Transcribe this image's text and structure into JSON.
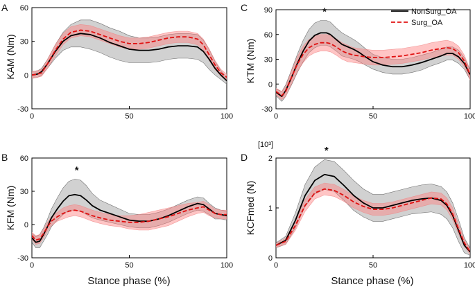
{
  "figure": {
    "legend": {
      "nonsurg": "NonSurg_OA",
      "surg": "Surg_OA"
    },
    "colors": {
      "nonsurg_line": "#000000",
      "nonsurg_band": "#9a9a9a",
      "surg_line": "#e01010",
      "surg_band": "#ff7f7f"
    }
  },
  "chart_data": [
    {
      "type": "line",
      "panel_label": "A",
      "ylabel": "KAM (Nm)",
      "xlabel": "",
      "xlim": [
        0,
        100
      ],
      "ylim": [
        -30,
        60
      ],
      "yticks": [
        "-30",
        "0",
        "30",
        "60"
      ],
      "xticks": [
        "0",
        "50",
        "100"
      ],
      "significance": "",
      "star_x": null,
      "x": [
        0,
        3,
        5,
        8,
        12,
        16,
        20,
        25,
        30,
        35,
        40,
        45,
        50,
        55,
        60,
        65,
        70,
        75,
        80,
        85,
        88,
        91,
        94,
        97,
        100
      ],
      "series": [
        {
          "name": "NonSurg_OA",
          "mean": [
            0,
            1,
            3,
            10,
            21,
            30,
            35,
            37,
            36,
            33,
            29,
            26,
            23,
            22,
            22,
            23,
            25,
            26,
            26,
            25,
            21,
            14,
            6,
            0,
            -5
          ],
          "sd": [
            3,
            3,
            3,
            4,
            6,
            8,
            10,
            12,
            13,
            13,
            13,
            13,
            12,
            11,
            11,
            11,
            11,
            11,
            11,
            11,
            10,
            9,
            6,
            4,
            3
          ]
        },
        {
          "name": "Surg_OA",
          "mean": [
            0,
            1,
            2,
            10,
            22,
            32,
            38,
            40,
            39,
            36,
            33,
            30,
            28,
            28,
            29,
            31,
            33,
            34,
            34,
            32,
            27,
            18,
            9,
            2,
            -2
          ],
          "sd": [
            3,
            3,
            3,
            4,
            5,
            5,
            5,
            5,
            5,
            5,
            5,
            5,
            5,
            5,
            5,
            5,
            5,
            5,
            5,
            5,
            5,
            5,
            4,
            3,
            3
          ]
        }
      ]
    },
    {
      "type": "line",
      "panel_label": "B",
      "ylabel": "KFM (Nm)",
      "xlabel": "Stance phase (%)",
      "xlim": [
        0,
        100
      ],
      "ylim": [
        -30,
        60
      ],
      "yticks": [
        "-30",
        "0",
        "30",
        "60"
      ],
      "xticks": [
        "0",
        "50",
        "100"
      ],
      "significance": "*",
      "star_x": 23,
      "x": [
        0,
        2,
        4,
        6,
        8,
        10,
        13,
        16,
        19,
        22,
        25,
        28,
        31,
        35,
        40,
        45,
        50,
        55,
        60,
        65,
        70,
        75,
        80,
        85,
        88,
        91,
        94,
        97,
        100
      ],
      "series": [
        {
          "name": "NonSurg_OA",
          "mean": [
            -12,
            -16,
            -15,
            -9,
            -2,
            6,
            14,
            21,
            26,
            27,
            26,
            22,
            17,
            13,
            10,
            7,
            4,
            3,
            3,
            5,
            8,
            12,
            16,
            19,
            18,
            14,
            10,
            9,
            8
          ],
          "sd": [
            4,
            5,
            6,
            6,
            7,
            8,
            10,
            12,
            13,
            14,
            14,
            13,
            11,
            9,
            8,
            7,
            6,
            6,
            6,
            6,
            6,
            6,
            6,
            6,
            6,
            5,
            5,
            4,
            4
          ]
        },
        {
          "name": "Surg_OA",
          "mean": [
            -10,
            -14,
            -13,
            -8,
            -2,
            3,
            7,
            10,
            12,
            13,
            12,
            10,
            8,
            6,
            4,
            3,
            2,
            2,
            3,
            5,
            7,
            10,
            13,
            15,
            16,
            13,
            10,
            9,
            9
          ],
          "sd": [
            3,
            4,
            4,
            4,
            4,
            4,
            4,
            5,
            5,
            5,
            5,
            5,
            5,
            5,
            5,
            5,
            6,
            7,
            8,
            8,
            8,
            7,
            6,
            5,
            5,
            5,
            4,
            4,
            4
          ]
        }
      ]
    },
    {
      "type": "line",
      "panel_label": "C",
      "ylabel": "KTM (Nm)",
      "xlabel": "",
      "xlim": [
        0,
        100
      ],
      "ylim": [
        -30,
        90
      ],
      "yticks": [
        "-30",
        "0",
        "30",
        "60",
        "90"
      ],
      "xticks": [
        "0",
        "50",
        "100"
      ],
      "significance": "*",
      "star_x": 25,
      "x": [
        0,
        3,
        5,
        8,
        11,
        14,
        17,
        20,
        23,
        26,
        28,
        31,
        34,
        37,
        40,
        43,
        46,
        50,
        55,
        60,
        65,
        70,
        75,
        80,
        85,
        88,
        91,
        94,
        97,
        100
      ],
      "series": [
        {
          "name": "NonSurg_OA",
          "mean": [
            -10,
            -15,
            -8,
            8,
            25,
            40,
            52,
            59,
            62,
            62,
            60,
            54,
            48,
            45,
            42,
            38,
            33,
            27,
            23,
            21,
            21,
            23,
            26,
            30,
            34,
            37,
            37,
            33,
            25,
            11
          ],
          "sd": [
            4,
            6,
            7,
            9,
            11,
            13,
            14,
            15,
            15,
            15,
            15,
            14,
            14,
            13,
            12,
            11,
            10,
            9,
            9,
            9,
            9,
            9,
            9,
            8,
            8,
            8,
            8,
            8,
            7,
            6
          ]
        },
        {
          "name": "Surg_OA",
          "mean": [
            -9,
            -14,
            -9,
            8,
            24,
            36,
            44,
            48,
            50,
            50,
            49,
            45,
            40,
            37,
            35,
            34,
            33,
            32,
            32,
            33,
            34,
            36,
            38,
            41,
            43,
            44,
            43,
            38,
            28,
            11
          ],
          "sd": [
            4,
            5,
            6,
            8,
            9,
            10,
            10,
            10,
            10,
            10,
            10,
            10,
            10,
            10,
            9,
            9,
            9,
            9,
            9,
            9,
            9,
            9,
            9,
            9,
            9,
            9,
            8,
            8,
            7,
            6
          ]
        }
      ]
    },
    {
      "type": "line",
      "panel_label": "D",
      "ylabel": "KCFmed (N)",
      "xlabel": "Stance phase (%)",
      "y_scale_label": "[10³]",
      "xlim": [
        0,
        100
      ],
      "ylim": [
        0,
        2
      ],
      "yticks": [
        "0",
        "1",
        "2"
      ],
      "xticks": [
        "0",
        "50",
        "100"
      ],
      "significance": "*",
      "star_x": 26,
      "x": [
        0,
        5,
        10,
        15,
        20,
        25,
        30,
        35,
        40,
        45,
        50,
        55,
        60,
        65,
        70,
        75,
        80,
        85,
        88,
        91,
        94,
        97,
        100
      ],
      "series": [
        {
          "name": "NonSurg_OA",
          "mean": [
            0.25,
            0.35,
            0.75,
            1.25,
            1.55,
            1.67,
            1.63,
            1.45,
            1.25,
            1.1,
            1.0,
            1.0,
            1.05,
            1.1,
            1.15,
            1.18,
            1.2,
            1.15,
            1.05,
            0.85,
            0.55,
            0.25,
            0.12
          ],
          "sd": [
            0.05,
            0.08,
            0.15,
            0.22,
            0.27,
            0.3,
            0.3,
            0.3,
            0.3,
            0.28,
            0.27,
            0.27,
            0.27,
            0.27,
            0.27,
            0.28,
            0.28,
            0.28,
            0.27,
            0.25,
            0.22,
            0.15,
            0.07
          ]
        },
        {
          "name": "Surg_OA",
          "mean": [
            0.25,
            0.33,
            0.65,
            1.05,
            1.3,
            1.38,
            1.35,
            1.25,
            1.12,
            1.03,
            0.97,
            0.97,
            1.0,
            1.05,
            1.1,
            1.15,
            1.2,
            1.18,
            1.08,
            0.88,
            0.58,
            0.3,
            0.12
          ],
          "sd": [
            0.04,
            0.06,
            0.1,
            0.12,
            0.12,
            0.12,
            0.12,
            0.12,
            0.12,
            0.12,
            0.12,
            0.12,
            0.12,
            0.12,
            0.12,
            0.12,
            0.12,
            0.12,
            0.12,
            0.12,
            0.1,
            0.07,
            0.05
          ]
        }
      ]
    }
  ]
}
